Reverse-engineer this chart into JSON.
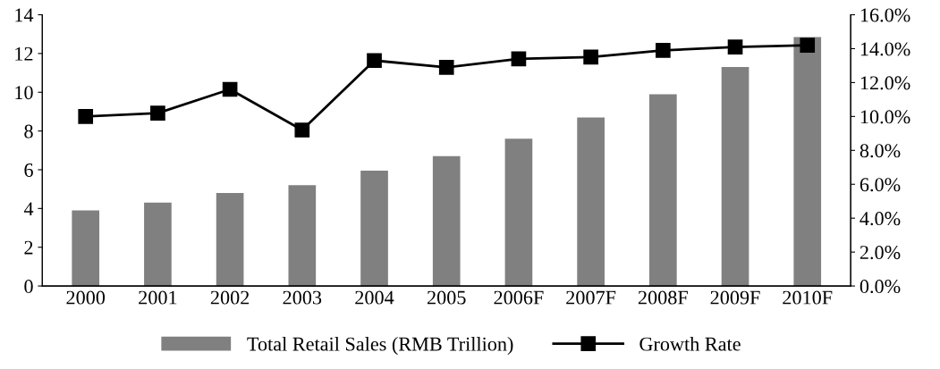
{
  "chart_data": {
    "type": "bar",
    "categories": [
      "2000",
      "2001",
      "2002",
      "2003",
      "2004",
      "2005",
      "2006F",
      "2007F",
      "2008F",
      "2009F",
      "2010F"
    ],
    "series": [
      {
        "name": "Total Retail Sales (RMB Trillion)",
        "color": "#808080",
        "values": [
          3.9,
          4.3,
          4.8,
          5.2,
          5.95,
          6.7,
          7.6,
          8.7,
          9.9,
          11.3,
          12.85
        ]
      },
      {
        "name": "Growth Rate",
        "type": "line",
        "axis": "y2",
        "color": "#000000",
        "values": [
          10.0,
          10.2,
          11.6,
          9.2,
          13.3,
          12.9,
          13.4,
          13.5,
          13.9,
          14.1,
          14.2
        ]
      }
    ],
    "ylim": [
      0,
      14
    ],
    "yticks": [
      0,
      2,
      4,
      6,
      8,
      10,
      12,
      14
    ],
    "y2lim": [
      0,
      16
    ],
    "y2ticks": [
      {
        "value": 0,
        "label": "0.0%"
      },
      {
        "value": 2,
        "label": "2.0%"
      },
      {
        "value": 4,
        "label": "4.0%"
      },
      {
        "value": 6,
        "label": "6.0%"
      },
      {
        "value": 8,
        "label": "8.0%"
      },
      {
        "value": 10,
        "label": "10.0%"
      },
      {
        "value": 12,
        "label": "12.0%"
      },
      {
        "value": 14,
        "label": "14.0%"
      },
      {
        "value": 16,
        "label": "16.0%"
      }
    ],
    "marker": "square",
    "grid": false,
    "legend": "bottom"
  }
}
